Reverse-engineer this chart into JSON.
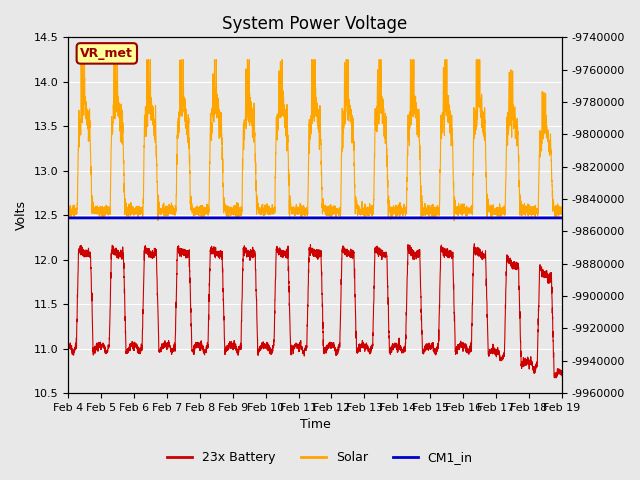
{
  "title": "System Power Voltage",
  "xlabel": "Time",
  "ylabel": "Volts",
  "ylim_left": [
    10.5,
    14.5
  ],
  "ylim_right": [
    -9960000,
    -9740000
  ],
  "right_ticks": [
    -9740000,
    -9760000,
    -9780000,
    -9800000,
    -9820000,
    -9840000,
    -9860000,
    -9880000,
    -9900000,
    -9920000,
    -9940000,
    -9960000
  ],
  "left_ticks": [
    10.5,
    11.0,
    11.5,
    12.0,
    12.5,
    13.0,
    13.5,
    14.0,
    14.5
  ],
  "x_tick_positions": [
    0,
    1,
    2,
    3,
    4,
    5,
    6,
    7,
    8,
    9,
    10,
    11,
    12,
    13,
    14,
    15
  ],
  "x_tick_labels": [
    "Feb 4",
    "Feb 5",
    "Feb 6",
    "Feb 7",
    "Feb 8",
    "Feb 9",
    "Feb 10",
    "Feb 11",
    "Feb 12",
    "Feb 13",
    "Feb 14",
    "Feb 15",
    "Feb 16",
    "Feb 17",
    "Feb 18",
    "Feb 19"
  ],
  "cm1_in_value": 12.47,
  "bg_color": "#e8e8e8",
  "plot_bg_color": "#e8e8e8",
  "battery_color": "#cc0000",
  "solar_color": "#ffa500",
  "cm1_color": "#0000cc",
  "annotation_text": "VR_met",
  "annotation_box_color": "#ffff99",
  "annotation_text_color": "#990000",
  "title_fontsize": 12,
  "axis_fontsize": 9,
  "tick_fontsize": 8,
  "legend_labels": [
    "23x Battery",
    "Solar",
    "CM1_in"
  ]
}
